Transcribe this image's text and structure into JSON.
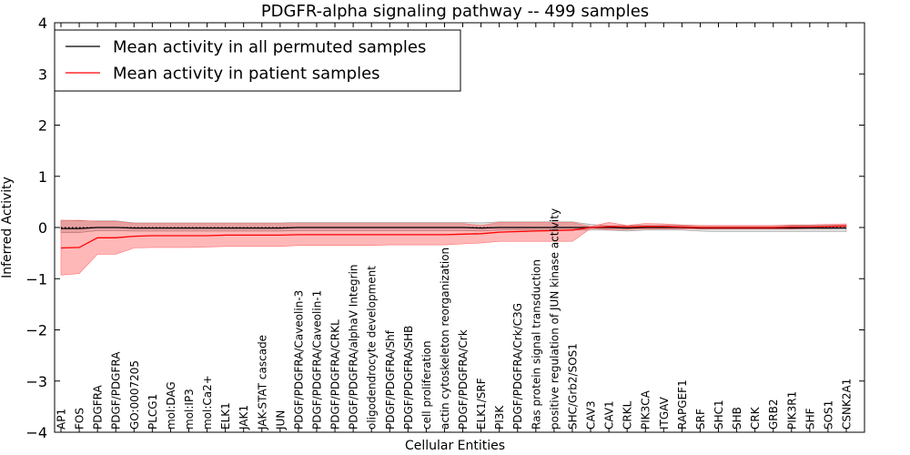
{
  "chart_data": {
    "type": "line",
    "title": "PDGFR-alpha signaling pathway -- 499 samples",
    "xlabel": "Cellular Entities",
    "ylabel": "Inferred Activity",
    "ylim": [
      -4,
      4
    ],
    "yticks": [
      -4,
      -3,
      -2,
      -1,
      0,
      1,
      2,
      3,
      4
    ],
    "ytick_labels": [
      "−4",
      "−3",
      "−2",
      "−1",
      "0",
      "1",
      "2",
      "3",
      "4"
    ],
    "legend_position": "top-left",
    "categories": [
      "AP1",
      "FOS",
      "PDGFRA",
      "PDGF/PDGFRA",
      "GO:0007205",
      "PLCG1",
      "mol:DAG",
      "mol:IP3",
      "mol:Ca2+",
      "ELK1",
      "JAK1",
      "JAK-STAT cascade",
      "JUN",
      "PDGF/PDGFRA/Caveolin-3",
      "PDGF/PDGFRA/Caveolin-1",
      "PDGF/PDGFRA/CRKL",
      "PDGF/PDGFRA/alphaV Integrin",
      "oligodendrocyte development",
      "PDGF/PDGFRA/Shf",
      "PDGF/PDGFRA/SHB",
      "cell proliferation",
      "actin cytoskeleton reorganization",
      "PDGF/PDGFRA/Crk",
      "ELK1/SRF",
      "PI3K",
      "PDGF/PDGFRA/Crk/C3G",
      "Ras protein signal transduction",
      "positive regulation of JUN kinase activity",
      "SHC/Grb2/SOS1",
      "CAV3",
      "CAV1",
      "CRKL",
      "PIK3CA",
      "ITGAV",
      "RAPGEF1",
      "SRF",
      "SHC1",
      "SHB",
      "CRK",
      "GRB2",
      "PIK3R1",
      "SHF",
      "SOS1",
      "CSNK2A1"
    ],
    "series": [
      {
        "name": "Mean activity in all permuted samples",
        "color": "#000000",
        "values": [
          -0.02,
          -0.02,
          0.0,
          0.0,
          -0.01,
          -0.01,
          -0.01,
          -0.01,
          -0.01,
          -0.01,
          -0.01,
          -0.01,
          -0.01,
          0.0,
          0.0,
          0.0,
          0.0,
          0.0,
          0.0,
          0.0,
          0.0,
          0.0,
          0.0,
          -0.01,
          0.0,
          0.0,
          0.0,
          0.0,
          0.0,
          0.0,
          0.0,
          -0.01,
          0.0,
          0.0,
          0.0,
          -0.01,
          -0.01,
          -0.01,
          -0.01,
          -0.01,
          -0.01,
          -0.01,
          -0.01,
          -0.01
        ],
        "band_upper": [
          0.14,
          0.13,
          0.13,
          0.13,
          0.09,
          0.09,
          0.09,
          0.09,
          0.09,
          0.09,
          0.09,
          0.09,
          0.09,
          0.1,
          0.1,
          0.1,
          0.1,
          0.1,
          0.1,
          0.1,
          0.1,
          0.1,
          0.1,
          0.09,
          0.11,
          0.11,
          0.11,
          0.11,
          0.11,
          0.06,
          0.03,
          0.04,
          0.04,
          0.04,
          0.04,
          0.04,
          0.04,
          0.04,
          0.04,
          0.04,
          0.04,
          0.04,
          0.04,
          0.04
        ],
        "band_lower": [
          -0.1,
          -0.1,
          -0.06,
          -0.06,
          -0.07,
          -0.07,
          -0.07,
          -0.07,
          -0.07,
          -0.07,
          -0.07,
          -0.07,
          -0.07,
          -0.06,
          -0.06,
          -0.06,
          -0.06,
          -0.06,
          -0.06,
          -0.06,
          -0.06,
          -0.06,
          -0.06,
          -0.07,
          -0.05,
          -0.05,
          -0.05,
          -0.05,
          -0.05,
          -0.05,
          -0.05,
          -0.07,
          -0.05,
          -0.05,
          -0.05,
          -0.07,
          -0.08,
          -0.08,
          -0.08,
          -0.08,
          -0.08,
          -0.08,
          -0.08,
          -0.08
        ]
      },
      {
        "name": "Mean activity in patient samples",
        "color": "#ff0000",
        "values": [
          -0.4,
          -0.39,
          -0.2,
          -0.2,
          -0.17,
          -0.16,
          -0.16,
          -0.16,
          -0.16,
          -0.15,
          -0.15,
          -0.15,
          -0.15,
          -0.14,
          -0.14,
          -0.14,
          -0.14,
          -0.14,
          -0.14,
          -0.14,
          -0.14,
          -0.14,
          -0.13,
          -0.12,
          -0.09,
          -0.08,
          -0.07,
          -0.06,
          -0.05,
          0.0,
          0.02,
          0.01,
          0.02,
          0.02,
          0.01,
          0.0,
          0.0,
          0.0,
          0.0,
          0.0,
          0.01,
          0.01,
          0.02,
          0.03
        ],
        "band_upper": [
          0.14,
          0.14,
          0.12,
          0.12,
          0.08,
          0.08,
          0.08,
          0.08,
          0.08,
          0.08,
          0.08,
          0.08,
          0.08,
          0.08,
          0.08,
          0.08,
          0.08,
          0.08,
          0.08,
          0.08,
          0.08,
          0.08,
          0.08,
          0.04,
          0.1,
          0.1,
          0.1,
          0.1,
          0.1,
          0.02,
          0.1,
          0.04,
          0.08,
          0.07,
          0.05,
          0.04,
          0.04,
          0.04,
          0.04,
          0.04,
          0.05,
          0.05,
          0.06,
          0.07
        ],
        "band_lower": [
          -0.93,
          -0.9,
          -0.52,
          -0.52,
          -0.4,
          -0.39,
          -0.39,
          -0.39,
          -0.38,
          -0.37,
          -0.37,
          -0.37,
          -0.37,
          -0.35,
          -0.35,
          -0.35,
          -0.35,
          -0.35,
          -0.34,
          -0.34,
          -0.34,
          -0.34,
          -0.32,
          -0.3,
          -0.27,
          -0.27,
          -0.27,
          -0.27,
          -0.27,
          -0.02,
          -0.04,
          -0.04,
          -0.03,
          -0.03,
          -0.03,
          -0.03,
          -0.03,
          -0.03,
          -0.03,
          -0.03,
          -0.03,
          -0.02,
          -0.02,
          -0.01
        ]
      }
    ]
  }
}
